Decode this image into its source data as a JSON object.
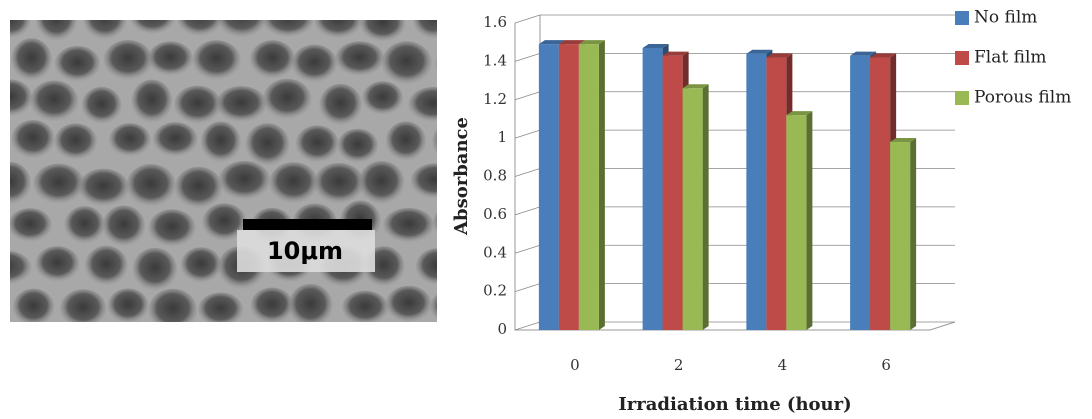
{
  "image": {
    "scale_bar": "10μm"
  },
  "chart_data": {
    "type": "bar",
    "categories": [
      "0",
      "2",
      "4",
      "6"
    ],
    "series": [
      {
        "name": "No film",
        "color": "#4a7ebb",
        "values": [
          1.49,
          1.47,
          1.44,
          1.43
        ]
      },
      {
        "name": "Flat film",
        "color": "#be4b48",
        "values": [
          1.49,
          1.43,
          1.42,
          1.42
        ]
      },
      {
        "name": "Porous film",
        "color": "#98b954",
        "values": [
          1.49,
          1.26,
          1.12,
          0.98
        ]
      }
    ],
    "ylim": [
      0,
      1.6
    ],
    "yticks": [
      0,
      0.2,
      0.4,
      0.6,
      0.8,
      1,
      1.2,
      1.4,
      1.6
    ],
    "xlabel": "Irradiation time (hour)",
    "ylabel": "Absorbance",
    "grid": true,
    "legend": "right"
  }
}
